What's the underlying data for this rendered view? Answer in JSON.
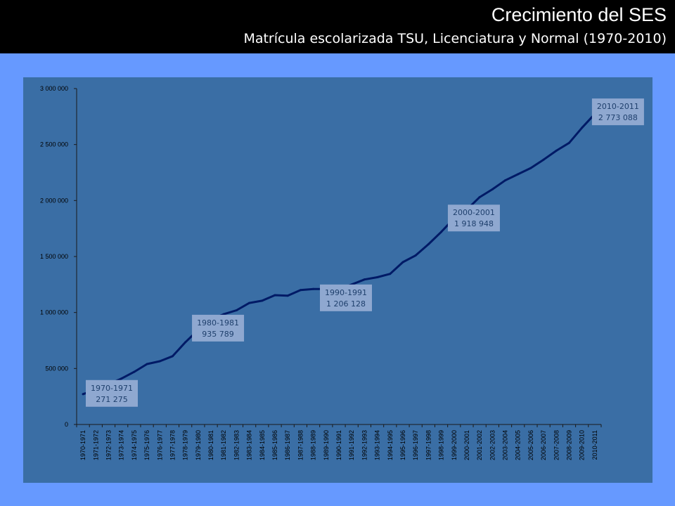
{
  "header": {
    "title": "Crecimiento del SES",
    "subtitle": "Matrícula escolarizada TSU, Licenciatura y Normal (1970-2010)"
  },
  "colors": {
    "background": "#6699FF",
    "header": "#000000",
    "plot_area": "#3A6EA5",
    "line": "#001A66",
    "label_box": "#8FA8D0",
    "label_text": "#1E3F6C"
  },
  "chart_data": {
    "type": "line",
    "title": "",
    "xlabel": "",
    "ylabel": "",
    "ylim": [
      0,
      3000000
    ],
    "yticks": [
      0,
      500000,
      1000000,
      1500000,
      2000000,
      2500000,
      3000000
    ],
    "ytick_labels": [
      "0",
      "500 000",
      "1 000 000",
      "1 500 000",
      "2 000 000",
      "2 500 000",
      "3 000 000"
    ],
    "grid": false,
    "legend": "none",
    "categories": [
      "1970-1971",
      "1971-1972",
      "1972-1973",
      "1973-1974",
      "1974-1975",
      "1975-1976",
      "1976-1977",
      "1977-1978",
      "1978-1979",
      "1979-1980",
      "1980-1981",
      "1981-1982",
      "1982-1983",
      "1983-1984",
      "1984-1985",
      "1985-1986",
      "1986-1987",
      "1987-1988",
      "1988-1989",
      "1989-1990",
      "1990-1991",
      "1991-1992",
      "1992-1993",
      "1993-1994",
      "1994-1995",
      "1995-1996",
      "1996-1997",
      "1997-1998",
      "1998-1999",
      "1999-2000",
      "2000-2001",
      "2001-2002",
      "2002-2003",
      "2003-2004",
      "2004-2005",
      "2005-2006",
      "2006-2007",
      "2007-2008",
      "2008-2009",
      "2009-2010",
      "2010-2011"
    ],
    "series": [
      {
        "values": [
          271275,
          310000,
          360000,
          410000,
          470000,
          540000,
          565000,
          610000,
          735000,
          845000,
          935789,
          985000,
          1020000,
          1085000,
          1105000,
          1155000,
          1150000,
          1200000,
          1210000,
          1210000,
          1206128,
          1250000,
          1295000,
          1315000,
          1345000,
          1450000,
          1510000,
          1610000,
          1720000,
          1840000,
          1918948,
          2030000,
          2100000,
          2180000,
          2235000,
          2290000,
          2365000,
          2445000,
          2515000,
          2650000,
          2773088
        ]
      }
    ],
    "annotations": [
      {
        "category": "1970-1971",
        "label": "1970-1971",
        "value_label": "271 275"
      },
      {
        "category": "1980-1981",
        "label": "1980-1981",
        "value_label": "935 789"
      },
      {
        "category": "1990-1991",
        "label": "1990-1991",
        "value_label": "1 206 128"
      },
      {
        "category": "2000-2001",
        "label": "2000-2001",
        "value_label": "1 918 948"
      },
      {
        "category": "2010-2011",
        "label": "2010-2011",
        "value_label": "2 773 088"
      }
    ]
  }
}
